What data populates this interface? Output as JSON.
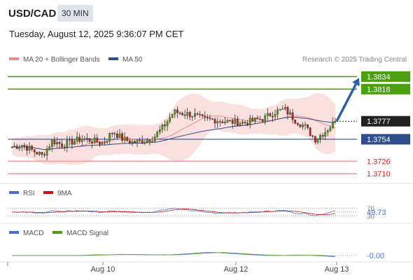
{
  "header": {
    "symbol": "USD/CAD",
    "timeframe": "30 MIN",
    "datetime": "Tuesday, August 12, 2025 9:36:07 PM CET",
    "credit": "Research © 2025 Trading Central"
  },
  "legend": {
    "ma20": {
      "label": "MA 20 + Bollinger Bands",
      "color": "#f08a8a"
    },
    "ma50": {
      "label": "MA 50",
      "color": "#2e4f8c"
    },
    "rsi": {
      "label": "RSI",
      "color": "#4a6fd0"
    },
    "rsi_ma": {
      "label": "9MA",
      "color": "#d01010"
    },
    "macd": {
      "label": "MACD",
      "color": "#4a6fd0"
    },
    "macd_signal": {
      "label": "MACD Signal",
      "color": "#4aa010"
    }
  },
  "colors": {
    "resistance": "#4aa010",
    "pivot": "#2e4f8c",
    "support": "#f0a0a0",
    "last_price": "#222222",
    "arrow": "#2e5fa8",
    "candle_up": "#4aa010",
    "candle_down": "#c02020"
  },
  "chart_data": {
    "type": "candlestick",
    "x_ticks": [
      "Aug 10",
      "Aug 12",
      "Aug 13"
    ],
    "y_range": [
      1.3703,
      1.3846
    ],
    "levels": [
      {
        "name": "resistance-2",
        "value": 1.3834,
        "label": "1.3834"
      },
      {
        "name": "resistance-1",
        "value": 1.3818,
        "label": "1.3818"
      },
      {
        "name": "last-price",
        "value": 1.3777,
        "label": "1.3777"
      },
      {
        "name": "pivot",
        "value": 1.3754,
        "label": "1.3754"
      },
      {
        "name": "support-1",
        "value": 1.3726,
        "label": "1.3726"
      },
      {
        "name": "support-2",
        "value": 1.371,
        "label": "1.3710"
      }
    ],
    "price_path": [
      1.3744,
      1.3747,
      1.374,
      1.3733,
      1.3752,
      1.3747,
      1.3751,
      1.3755,
      1.3752,
      1.3749,
      1.3764,
      1.3754,
      1.375,
      1.3752,
      1.3756,
      1.377,
      1.3789,
      1.3787,
      1.3785,
      1.3779,
      1.3779,
      1.3777,
      1.3776,
      1.3775,
      1.3778,
      1.3781,
      1.3789,
      1.3792,
      1.3779,
      1.377,
      1.3754,
      1.3764,
      1.3777
    ],
    "projection": {
      "from": 1.3777,
      "to": 1.3834
    },
    "rsi": {
      "levels": [
        70,
        30
      ],
      "last_value": 49.73,
      "last_label": "49.73"
    },
    "macd": {
      "last_value": -0.0,
      "last_label": "-0.00"
    }
  }
}
